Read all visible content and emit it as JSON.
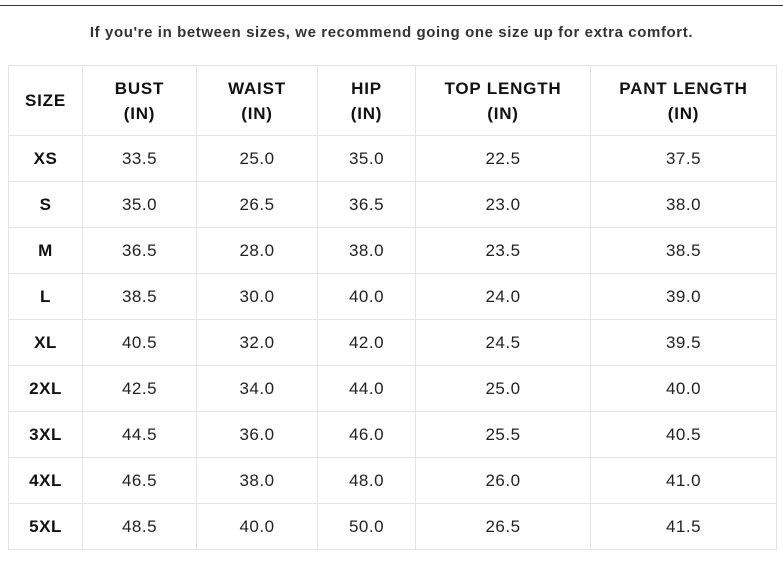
{
  "note": "If you're in between sizes, we recommend going one size up for extra comfort.",
  "table": {
    "header": [
      "SIZE",
      "BUST\n(IN)",
      "WAIST\n(IN)",
      "HIP\n(IN)",
      "TOP LENGTH\n(IN)",
      "PANT LENGTH\n(IN)"
    ],
    "rows": [
      [
        "XS",
        "33.5",
        "25.0",
        "35.0",
        "22.5",
        "37.5"
      ],
      [
        "S",
        "35.0",
        "26.5",
        "36.5",
        "23.0",
        "38.0"
      ],
      [
        "M",
        "36.5",
        "28.0",
        "38.0",
        "23.5",
        "38.5"
      ],
      [
        "L",
        "38.5",
        "30.0",
        "40.0",
        "24.0",
        "39.0"
      ],
      [
        "XL",
        "40.5",
        "32.0",
        "42.0",
        "24.5",
        "39.5"
      ],
      [
        "2XL",
        "42.5",
        "34.0",
        "44.0",
        "25.0",
        "40.0"
      ],
      [
        "3XL",
        "44.5",
        "36.0",
        "46.0",
        "25.5",
        "40.5"
      ],
      [
        "4XL",
        "46.5",
        "38.0",
        "48.0",
        "26.0",
        "41.0"
      ],
      [
        "5XL",
        "48.5",
        "40.0",
        "50.0",
        "26.5",
        "41.5"
      ]
    ]
  }
}
